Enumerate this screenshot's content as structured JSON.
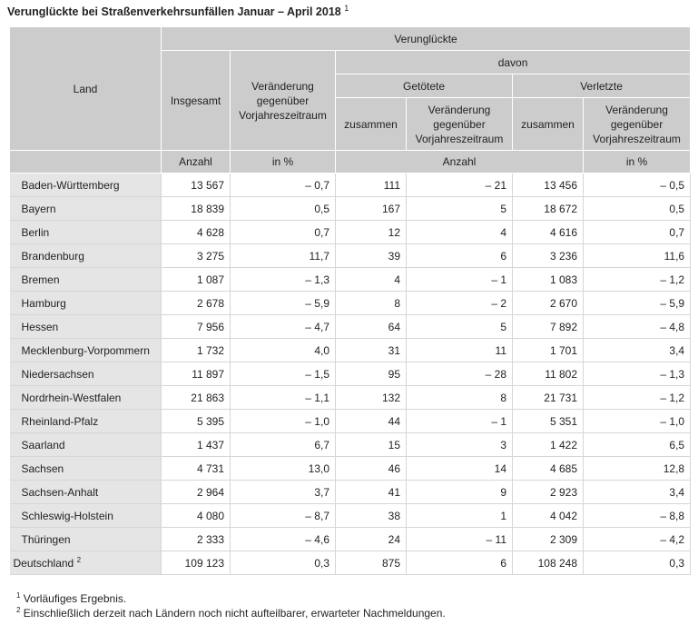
{
  "title": "Verunglückte bei Straßenverkehrsunfällen Januar – April 2018",
  "title_sup": "1",
  "header": {
    "land": "Land",
    "verunglueckte": "Verunglückte",
    "insgesamt": "Insgesamt",
    "veraenderung": "Veränderung gegenüber Vorjahreszeitraum",
    "davon": "davon",
    "getoetete": "Getötete",
    "verletzte": "Verletzte",
    "zusammen": "zusammen",
    "anzahl": "Anzahl",
    "in_prozent": "in %"
  },
  "rows": [
    {
      "land": "Baden-Württemberg",
      "insgesamt": "13 567",
      "ver_ges": "– 0,7",
      "getoetete": "111",
      "ver_get": "– 21",
      "verletzte": "13 456",
      "ver_verl": "– 0,5"
    },
    {
      "land": "Bayern",
      "insgesamt": "18 839",
      "ver_ges": "0,5",
      "getoetete": "167",
      "ver_get": "5",
      "verletzte": "18 672",
      "ver_verl": "0,5"
    },
    {
      "land": "Berlin",
      "insgesamt": "4 628",
      "ver_ges": "0,7",
      "getoetete": "12",
      "ver_get": "4",
      "verletzte": "4 616",
      "ver_verl": "0,7"
    },
    {
      "land": "Brandenburg",
      "insgesamt": "3 275",
      "ver_ges": "11,7",
      "getoetete": "39",
      "ver_get": "6",
      "verletzte": "3 236",
      "ver_verl": "11,6"
    },
    {
      "land": "Bremen",
      "insgesamt": "1 087",
      "ver_ges": "– 1,3",
      "getoetete": "4",
      "ver_get": "– 1",
      "verletzte": "1 083",
      "ver_verl": "– 1,2"
    },
    {
      "land": "Hamburg",
      "insgesamt": "2 678",
      "ver_ges": "– 5,9",
      "getoetete": "8",
      "ver_get": "– 2",
      "verletzte": "2 670",
      "ver_verl": "– 5,9"
    },
    {
      "land": "Hessen",
      "insgesamt": "7 956",
      "ver_ges": "– 4,7",
      "getoetete": "64",
      "ver_get": "5",
      "verletzte": "7 892",
      "ver_verl": "– 4,8"
    },
    {
      "land": "Mecklenburg-Vorpommern",
      "insgesamt": "1 732",
      "ver_ges": "4,0",
      "getoetete": "31",
      "ver_get": "11",
      "verletzte": "1 701",
      "ver_verl": "3,4"
    },
    {
      "land": "Niedersachsen",
      "insgesamt": "11 897",
      "ver_ges": "– 1,5",
      "getoetete": "95",
      "ver_get": "– 28",
      "verletzte": "11 802",
      "ver_verl": "– 1,3"
    },
    {
      "land": "Nordrhein-Westfalen",
      "insgesamt": "21 863",
      "ver_ges": "– 1,1",
      "getoetete": "132",
      "ver_get": "8",
      "verletzte": "21 731",
      "ver_verl": "– 1,2"
    },
    {
      "land": "Rheinland-Pfalz",
      "insgesamt": "5 395",
      "ver_ges": "– 1,0",
      "getoetete": "44",
      "ver_get": "– 1",
      "verletzte": "5 351",
      "ver_verl": "– 1,0"
    },
    {
      "land": "Saarland",
      "insgesamt": "1 437",
      "ver_ges": "6,7",
      "getoetete": "15",
      "ver_get": "3",
      "verletzte": "1 422",
      "ver_verl": "6,5"
    },
    {
      "land": "Sachsen",
      "insgesamt": "4 731",
      "ver_ges": "13,0",
      "getoetete": "46",
      "ver_get": "14",
      "verletzte": "4 685",
      "ver_verl": "12,8"
    },
    {
      "land": "Sachsen-Anhalt",
      "insgesamt": "2 964",
      "ver_ges": "3,7",
      "getoetete": "41",
      "ver_get": "9",
      "verletzte": "2 923",
      "ver_verl": "3,4"
    },
    {
      "land": "Schleswig-Holstein",
      "insgesamt": "4 080",
      "ver_ges": "– 8,7",
      "getoetete": "38",
      "ver_get": "1",
      "verletzte": "4 042",
      "ver_verl": "– 8,8"
    },
    {
      "land": "Thüringen",
      "insgesamt": "2 333",
      "ver_ges": "– 4,6",
      "getoetete": "24",
      "ver_get": "– 11",
      "verletzte": "2 309",
      "ver_verl": "– 4,2"
    }
  ],
  "total": {
    "land": "Deutschland",
    "sup": "2",
    "insgesamt": "109 123",
    "ver_ges": "0,3",
    "getoetete": "875",
    "ver_get": "6",
    "verletzte": "108 248",
    "ver_verl": "0,3"
  },
  "footnotes": [
    {
      "sup": "1",
      "text": "Vorläufiges Ergebnis."
    },
    {
      "sup": "2",
      "text": "Einschließlich derzeit nach Ländern noch nicht aufteilbarer, erwarteter Nachmeldungen."
    }
  ]
}
